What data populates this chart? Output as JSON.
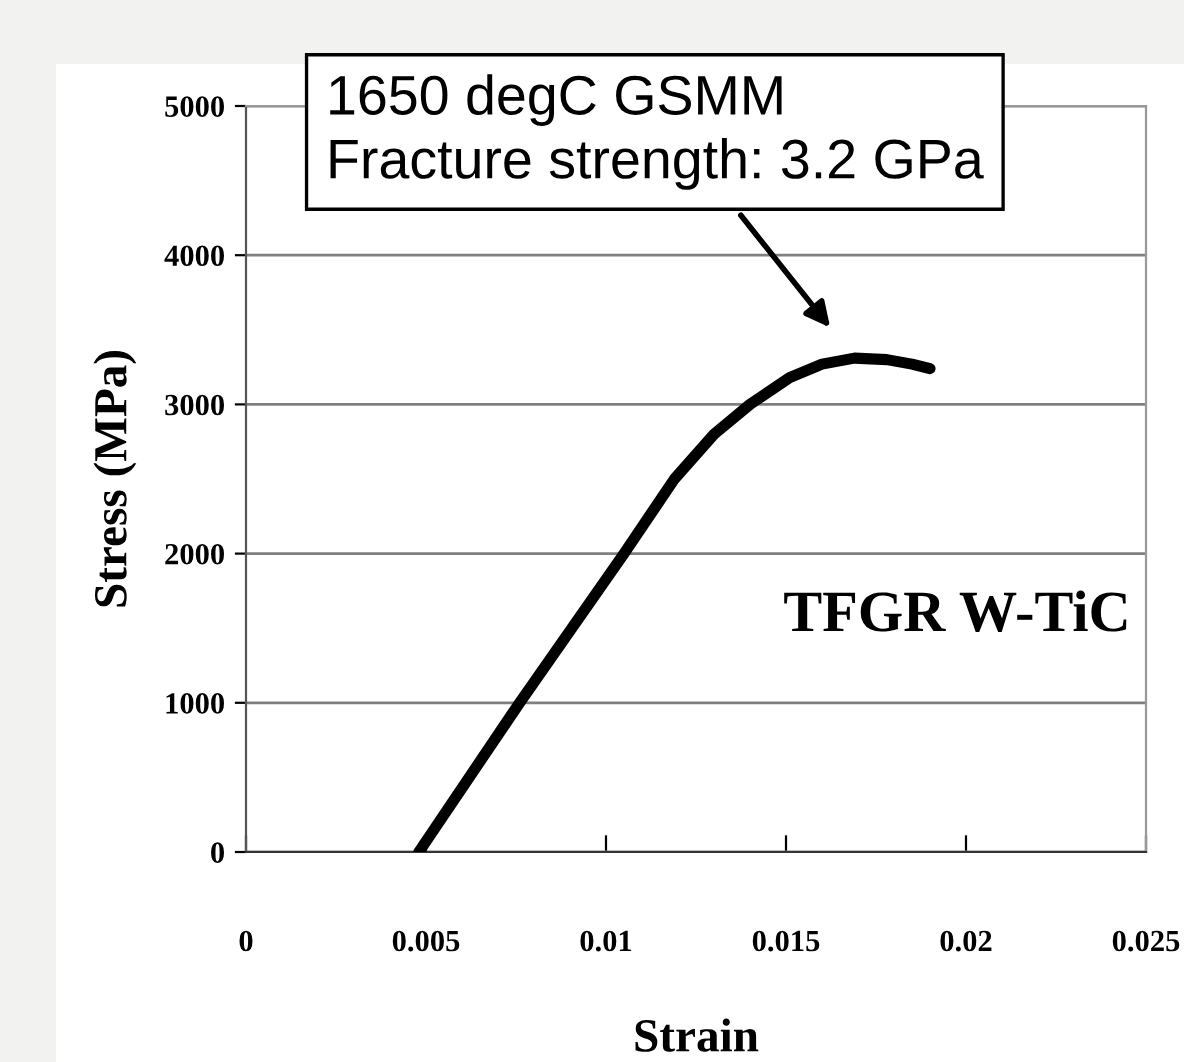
{
  "chart_data": {
    "type": "line",
    "xlabel": "Strain",
    "ylabel": "Stress (MPa)",
    "xlim": [
      0,
      0.025
    ],
    "xticks": [
      0,
      0.005,
      0.01,
      0.015,
      0.02,
      0.025
    ],
    "ylim": [
      0,
      5000
    ],
    "yticks": [
      0,
      1000,
      2000,
      3000,
      4000,
      5000
    ],
    "grid": "y",
    "marker": "none",
    "line_style": "solid",
    "series": [
      {
        "name": "TFGR W-TiC",
        "color": "#000000",
        "x": [
          0.0048,
          0.0076,
          0.0105,
          0.0119,
          0.013,
          0.014,
          0.0151,
          0.016,
          0.0169,
          0.0178,
          0.0185,
          0.019
        ],
        "values": [
          0,
          1000,
          2000,
          2500,
          2800,
          3000,
          3180,
          3270,
          3310,
          3300,
          3270,
          3240
        ]
      }
    ],
    "annotations": [
      "1650 degC GSMM\nFracture strength: 3.2 GPa"
    ]
  }
}
